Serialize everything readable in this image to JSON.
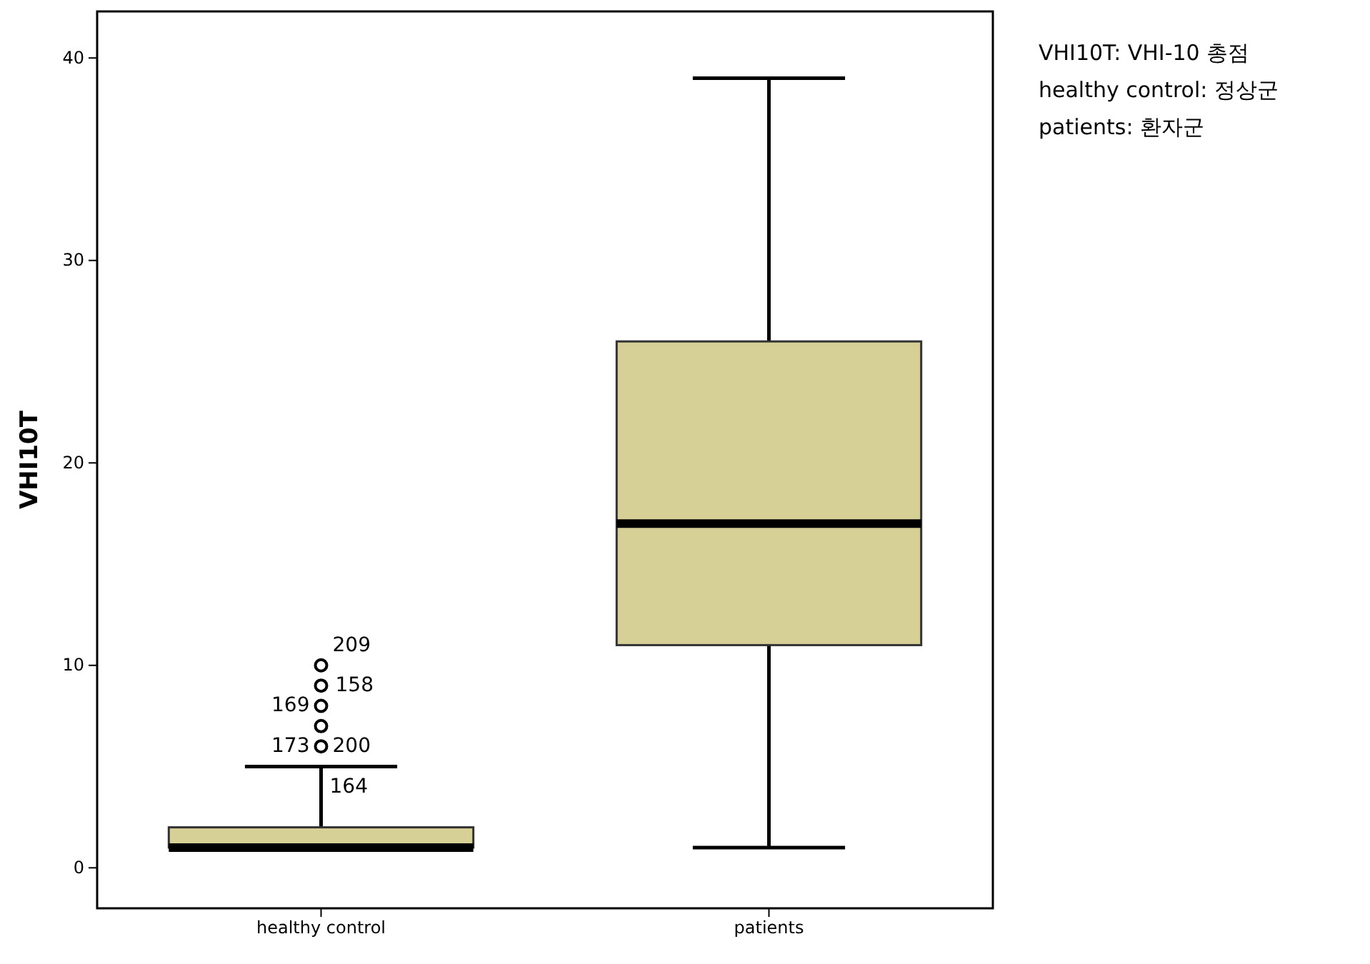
{
  "chart_data": {
    "type": "box",
    "ylabel": "VHI10T",
    "categories": [
      "healthy control",
      "patients"
    ],
    "color": "#d6cf96",
    "boxes": [
      {
        "low": 1,
        "q1": 1,
        "median": 1,
        "q3": 2,
        "high": 5,
        "outliers": [
          6,
          7,
          8,
          9,
          10
        ]
      },
      {
        "low": 1,
        "q1": 11,
        "median": 17,
        "q3": 26,
        "high": 39
      }
    ],
    "ylim": [
      -2,
      42.3
    ],
    "yticks": [
      0,
      10,
      20,
      30,
      40
    ],
    "grid": false,
    "annotations": [
      "209",
      "158",
      "169",
      "173",
      "200",
      "164",
      "VHI10T: VHI-10 총점",
      "healthy control: 정상군",
      "patients: 환자군"
    ]
  }
}
